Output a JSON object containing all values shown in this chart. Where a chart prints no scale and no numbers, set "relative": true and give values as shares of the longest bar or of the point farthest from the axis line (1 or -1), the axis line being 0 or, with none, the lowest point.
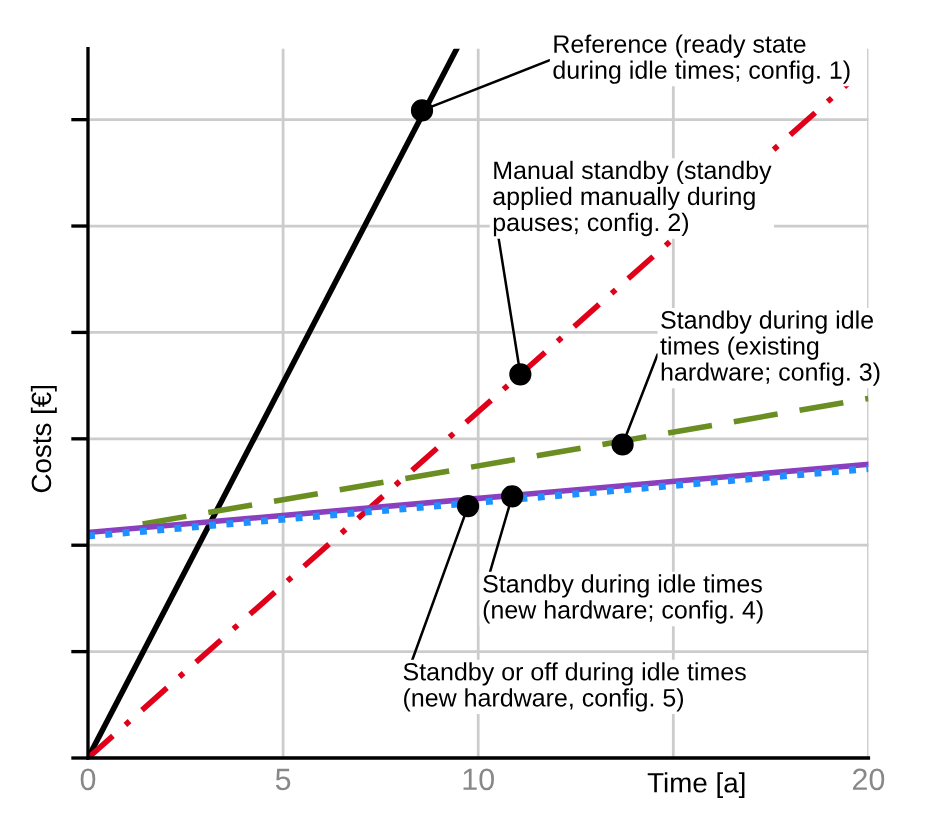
{
  "chart_data": {
    "type": "line",
    "relative": true,
    "xlabel": "Time [a]",
    "ylabel": "Costs [€]",
    "xlim": [
      0,
      20
    ],
    "xticks": [
      0,
      5,
      10,
      {
        "value": 15,
        "label": null
      },
      20
    ],
    "grid": true,
    "marker": "none",
    "series": [
      {
        "color": "#000000",
        "line_style": "solid",
        "x": [
          0,
          9.45
        ],
        "values": [
          0,
          1
        ]
      },
      {
        "color": "#e0001a",
        "line_style": "dashdot",
        "x": [
          0,
          19.5
        ],
        "values": [
          0,
          0.952
        ]
      },
      {
        "color": "#6b8e23",
        "line_style": "dashed",
        "x": [
          1.4,
          20
        ],
        "values": [
          0.33,
          0.507
        ]
      },
      {
        "color": "#8a3fbf",
        "line_style": "solid",
        "x": [
          0,
          20
        ],
        "values": [
          0.318,
          0.414
        ]
      },
      {
        "color": "#1e90ff",
        "line_style": "dotted",
        "x": [
          0,
          20
        ],
        "values": [
          0.313,
          0.408
        ]
      }
    ],
    "annotations": [
      {
        "text": "Reference (ready state\nduring idle times; config. 1)",
        "x": 8.56,
        "y": 0.913
      },
      {
        "text": "Manual standby (standby\napplied manually during\npauses; config. 2)",
        "x": 11.08,
        "y": 0.541
      },
      {
        "text": "Standby during idle\ntimes (existing\nhardware; config. 3)",
        "x": 13.7,
        "y": 0.442
      },
      {
        "text": "Standby during idle times\n(new hardware; config. 4)",
        "x": 10.87,
        "y": 0.369
      },
      {
        "text": "Standby or off during idle times\n(new hardware, config. 5)",
        "x": 9.74,
        "y": 0.355
      }
    ]
  }
}
